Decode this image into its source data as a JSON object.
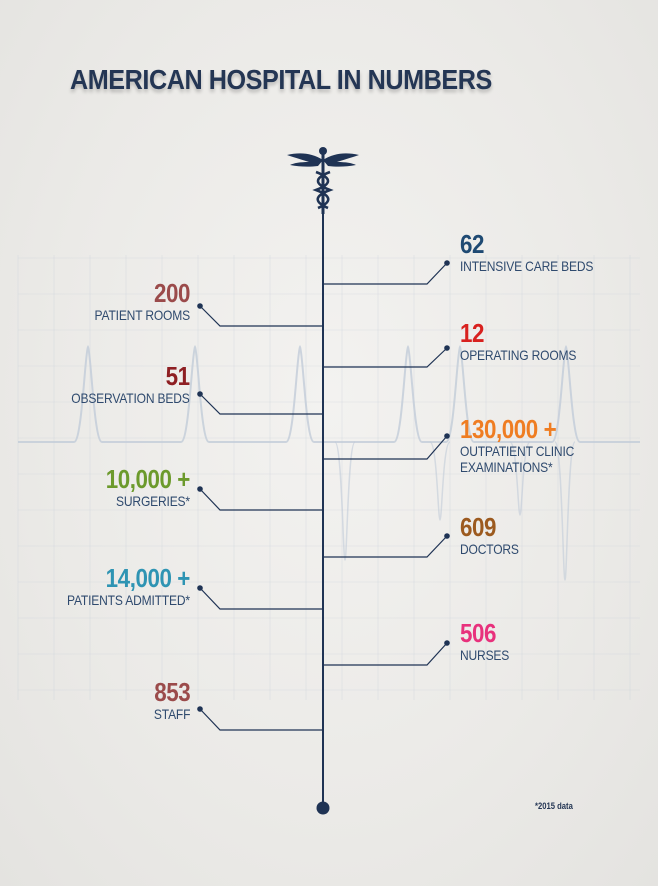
{
  "title": "AMERICAN HOSPITAL IN NUMBERS",
  "footnote": "*2015 data",
  "colors": {
    "navy": "#1f3354",
    "label": "#2f4a6e",
    "grid": "#c9d0da",
    "pulse": "#c2ccd8"
  },
  "icons": {
    "caduceus": "caduceus-icon"
  },
  "stats": {
    "left": [
      {
        "value": "200",
        "label": "PATIENT ROOMS",
        "color": "#9b4b4b"
      },
      {
        "value": "51",
        "label": "OBSERVATION BEDS",
        "color": "#8e1f23"
      },
      {
        "value": "10,000 +",
        "label": "SURGERIES*",
        "color": "#6c9a2c"
      },
      {
        "value": "14,000 +",
        "label": "PATIENTS ADMITTED*",
        "color": "#2e94b3"
      },
      {
        "value": "853",
        "label": "STAFF",
        "color": "#9b4b4b"
      }
    ],
    "right": [
      {
        "value": "62",
        "label": "INTENSIVE CARE BEDS",
        "color": "#1f4a73"
      },
      {
        "value": "12",
        "label": "OPERATING ROOMS",
        "color": "#d8211f"
      },
      {
        "value": "130,000 +",
        "label": "OUTPATIENT CLINIC\nEXAMINATIONS*",
        "color": "#ef7d22"
      },
      {
        "value": "609",
        "label": "DOCTORS",
        "color": "#9c5a1f"
      },
      {
        "value": "506",
        "label": "NURSES",
        "color": "#e8317c"
      }
    ]
  }
}
